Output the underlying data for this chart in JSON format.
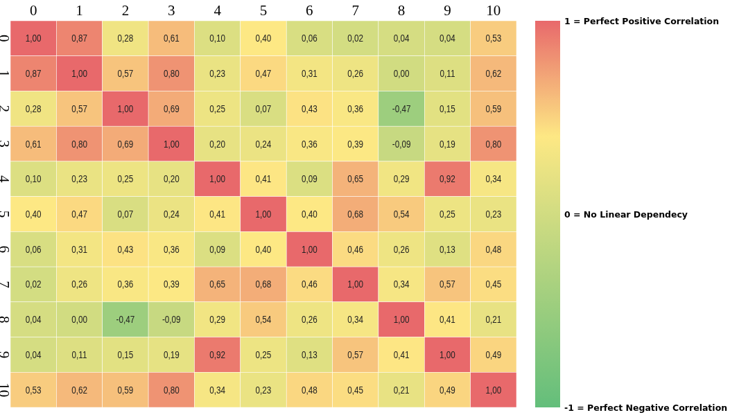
{
  "chart_data": {
    "type": "heatmap",
    "categories": [
      "0",
      "1",
      "2",
      "3",
      "4",
      "5",
      "6",
      "7",
      "8",
      "9",
      "10"
    ],
    "y_categories": [
      "0",
      "1",
      "2",
      "3",
      "4",
      "5",
      "6",
      "7",
      "8",
      "9",
      "10"
    ],
    "cells": [
      [
        1.0,
        0.87,
        0.28,
        0.61,
        0.1,
        0.4,
        0.06,
        0.02,
        0.04,
        0.04,
        0.53
      ],
      [
        0.87,
        1.0,
        0.57,
        0.8,
        0.23,
        0.47,
        0.31,
        0.26,
        0.0,
        0.11,
        0.62
      ],
      [
        0.28,
        0.57,
        1.0,
        0.69,
        0.25,
        0.07,
        0.43,
        0.36,
        -0.47,
        0.15,
        0.59
      ],
      [
        0.61,
        0.8,
        0.69,
        1.0,
        0.2,
        0.24,
        0.36,
        0.39,
        -0.09,
        0.19,
        0.8
      ],
      [
        0.1,
        0.23,
        0.25,
        0.2,
        1.0,
        0.41,
        0.09,
        0.65,
        0.29,
        0.92,
        0.34
      ],
      [
        0.4,
        0.47,
        0.07,
        0.24,
        0.41,
        1.0,
        0.4,
        0.68,
        0.54,
        0.25,
        0.23
      ],
      [
        0.06,
        0.31,
        0.43,
        0.36,
        0.09,
        0.4,
        1.0,
        0.46,
        0.26,
        0.13,
        0.48
      ],
      [
        0.02,
        0.26,
        0.36,
        0.39,
        0.65,
        0.68,
        0.46,
        1.0,
        0.34,
        0.57,
        0.45
      ],
      [
        0.04,
        0.0,
        -0.47,
        -0.09,
        0.29,
        0.54,
        0.26,
        0.34,
        1.0,
        0.41,
        0.21
      ],
      [
        0.04,
        0.11,
        0.15,
        0.19,
        0.92,
        0.25,
        0.13,
        0.57,
        0.41,
        1.0,
        0.49
      ],
      [
        0.53,
        0.62,
        0.59,
        0.8,
        0.34,
        0.23,
        0.48,
        0.45,
        0.21,
        0.49,
        1.0
      ]
    ],
    "cell_labels": [
      [
        "1,00",
        "0,87",
        "0,28",
        "0,61",
        "0,10",
        "0,40",
        "0,06",
        "0,02",
        "0,04",
        "0,04",
        "0,53"
      ],
      [
        "0,87",
        "1,00",
        "0,57",
        "0,80",
        "0,23",
        "0,47",
        "0,31",
        "0,26",
        "0,00",
        "0,11",
        "0,62"
      ],
      [
        "0,28",
        "0,57",
        "1,00",
        "0,69",
        "0,25",
        "0,07",
        "0,43",
        "0,36",
        "-0,47",
        "0,15",
        "0,59"
      ],
      [
        "0,61",
        "0,80",
        "0,69",
        "1,00",
        "0,20",
        "0,24",
        "0,36",
        "0,39",
        "-0,09",
        "0,19",
        "0,80"
      ],
      [
        "0,10",
        "0,23",
        "0,25",
        "0,20",
        "1,00",
        "0,41",
        "0,09",
        "0,65",
        "0,29",
        "0,92",
        "0,34"
      ],
      [
        "0,40",
        "0,47",
        "0,07",
        "0,24",
        "0,41",
        "1,00",
        "0,40",
        "0,68",
        "0,54",
        "0,25",
        "0,23"
      ],
      [
        "0,06",
        "0,31",
        "0,43",
        "0,36",
        "0,09",
        "0,40",
        "1,00",
        "0,46",
        "0,26",
        "0,13",
        "0,48"
      ],
      [
        "0,02",
        "0,26",
        "0,36",
        "0,39",
        "0,65",
        "0,68",
        "0,46",
        "1,00",
        "0,34",
        "0,57",
        "0,45"
      ],
      [
        "0,04",
        "0,00",
        "-0,47",
        "-0,09",
        "0,29",
        "0,54",
        "0,26",
        "0,34",
        "1,00",
        "0,41",
        "0,21"
      ],
      [
        "0,04",
        "0,11",
        "0,15",
        "0,19",
        "0,92",
        "0,25",
        "0,13",
        "0,57",
        "0,41",
        "1,00",
        "0,49"
      ],
      [
        "0,53",
        "0,62",
        "0,59",
        "0,80",
        "0,34",
        "0,23",
        "0,48",
        "0,45",
        "0,21",
        "0,49",
        "1,00"
      ]
    ],
    "clim": [
      1,
      -1
    ],
    "cticks": [
      {
        "value": 1,
        "label": "1 = Perfect Positive Correlation"
      },
      {
        "value": 0,
        "label": "0 = No Linear Dependecy"
      },
      {
        "value": -1,
        "label": "-1 = Perfect Negative Correlation"
      }
    ]
  }
}
